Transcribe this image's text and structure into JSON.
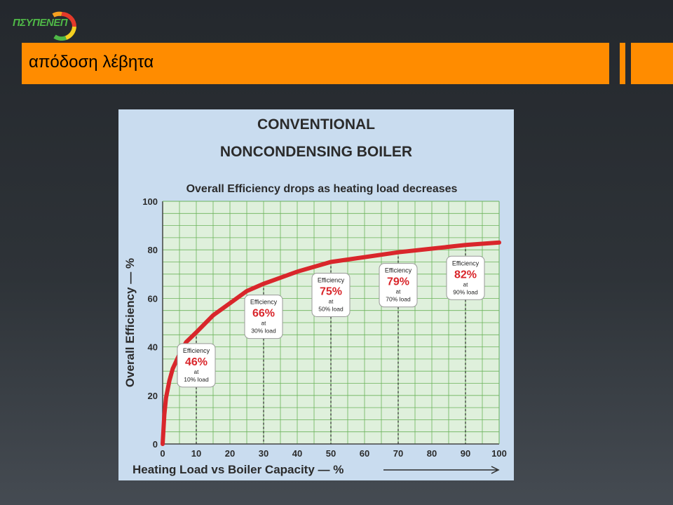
{
  "logo": {
    "text": "ΠΣΥΠΕΝΕΠ"
  },
  "slide": {
    "title": "απόδοση λέβητα"
  },
  "colors": {
    "title_bar": "#ff8c00",
    "curve": "#d9262b",
    "grid": "#6bb35a",
    "plot_bg": "#dff0dc",
    "panel_bg": "#c9dcef"
  },
  "chart_data": {
    "type": "line",
    "title_line1": "CONVENTIONAL",
    "title_line2": "NONCONDENSING BOILER",
    "subtitle": "Overall Efficiency drops as heating load decreases",
    "xlabel": "Heating Load vs Boiler Capacity — %",
    "ylabel": "Overall Efficiency — %",
    "xlim": [
      0,
      100
    ],
    "ylim": [
      0,
      100
    ],
    "x_ticks": [
      "0",
      "10",
      "20",
      "30",
      "40",
      "50",
      "60",
      "70",
      "80",
      "90",
      "100"
    ],
    "y_ticks": [
      "0",
      "20",
      "40",
      "60",
      "80",
      "100"
    ],
    "grid": true,
    "series": [
      {
        "x": [
          0,
          0.5,
          1,
          2,
          3,
          5,
          7,
          10,
          15,
          20,
          25,
          30,
          40,
          50,
          60,
          70,
          80,
          90,
          100
        ],
        "values": [
          0,
          12,
          19,
          26,
          31,
          37,
          42,
          46,
          53,
          58,
          63,
          66,
          71,
          75,
          77,
          79,
          80.5,
          82,
          83
        ]
      }
    ],
    "annotations": [
      {
        "x": 10,
        "value": "46%",
        "top": "Efficiency",
        "mid": "at",
        "bottom": "10% load"
      },
      {
        "x": 30,
        "value": "66%",
        "top": "Efficiency",
        "mid": "at",
        "bottom": "30% load"
      },
      {
        "x": 50,
        "value": "75%",
        "top": "Efficiency",
        "mid": "at",
        "bottom": "50% load"
      },
      {
        "x": 70,
        "value": "79%",
        "top": "Efficiency",
        "mid": "at",
        "bottom": "70% load"
      },
      {
        "x": 90,
        "value": "82%",
        "top": "Efficiency",
        "mid": "at",
        "bottom": "90% load"
      }
    ]
  }
}
